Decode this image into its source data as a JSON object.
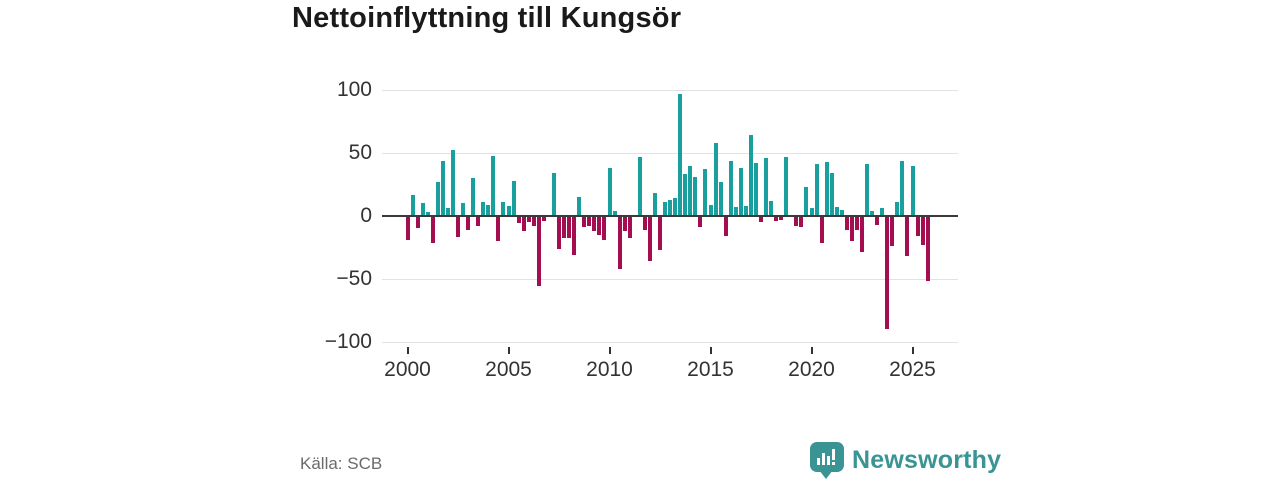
{
  "title": "Nettoinflyttning till Kungsör",
  "source": "Källa: SCB",
  "brand": {
    "name": "Newsworthy",
    "logo_icon": "speech-bubble-bar-chart",
    "color": "#3a9494"
  },
  "colors": {
    "positive_bar": "#1a9f9f",
    "negative_bar": "#a40d4f",
    "title_text": "#1a1a1a",
    "axis_text": "#333333",
    "gridline": "#e2e2e2",
    "zero_line": "#3a3a3a",
    "source_text": "#6b6b6b",
    "background": "#ffffff"
  },
  "chart_data": {
    "type": "bar",
    "title": "Nettoinflyttning till Kungsör",
    "xlabel": "",
    "ylabel": "",
    "frequency": "quarterly",
    "start_period": "2000-Q1",
    "end_period": "2025-Q4",
    "x_tick_labels": [
      "2000",
      "2005",
      "2010",
      "2015",
      "2020",
      "2025"
    ],
    "y_tick_labels": [
      "100",
      "50",
      "0",
      "−50",
      "−100"
    ],
    "y_ticks": [
      100,
      50,
      0,
      -50,
      -100
    ],
    "ylim": [
      -100,
      100
    ],
    "grid": "horizontal",
    "legend": "none",
    "positive_color": "#1a9f9f",
    "negative_color": "#a40d4f",
    "values": [
      -18,
      17,
      -9,
      10,
      3,
      -21,
      27,
      44,
      6,
      52,
      -16,
      10,
      -10,
      30,
      -7,
      11,
      9,
      48,
      -19,
      11,
      8,
      28,
      -5,
      -11,
      -4,
      -7,
      -55,
      -3,
      1,
      34,
      -25,
      -17,
      -17,
      -30,
      15,
      -8,
      -7,
      -11,
      -14,
      -18,
      38,
      4,
      -41,
      -11,
      -17,
      0,
      47,
      -10,
      -35,
      18,
      -26,
      11,
      13,
      14,
      97,
      33,
      40,
      31,
      -8,
      37,
      9,
      58,
      27,
      -15,
      44,
      7,
      38,
      8,
      64,
      42,
      -4,
      46,
      12,
      -3,
      -2,
      47,
      0,
      -7,
      -8,
      23,
      6,
      41,
      -21,
      43,
      34,
      7,
      5,
      -10,
      -19,
      -10,
      -28,
      41,
      4,
      -6,
      6,
      -89,
      -23,
      11,
      44,
      -31,
      40,
      -15,
      -22,
      -51
    ]
  }
}
